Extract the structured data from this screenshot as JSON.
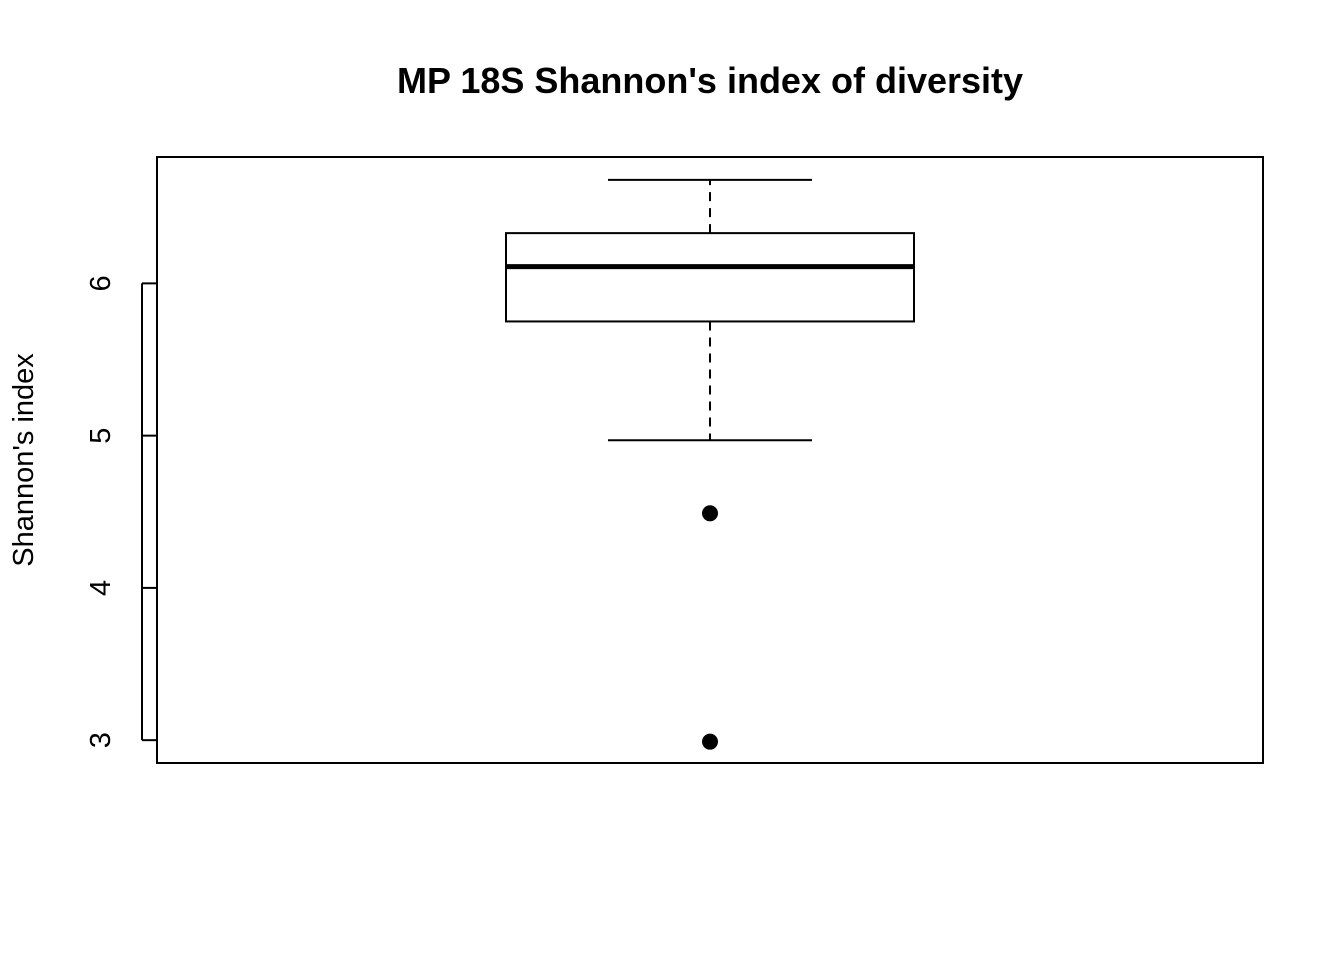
{
  "chart_data": {
    "type": "boxplot",
    "title": "MP 18S Shannon's index of diversity",
    "xlabel": "",
    "ylabel": "Shannon's index",
    "ylim": [
      2.85,
      6.83
    ],
    "y_ticks": [
      3,
      4,
      5,
      6
    ],
    "y_tick_labels": [
      "3",
      "4",
      "5",
      "6"
    ],
    "grid": false,
    "legend": "none",
    "series": [
      {
        "whisker_low": 4.97,
        "q1": 5.75,
        "median": 6.11,
        "q3": 6.33,
        "whisker_high": 6.68,
        "outliers": [
          4.49,
          2.99
        ]
      }
    ],
    "colors": {
      "line": "#000000",
      "background": "#ffffff",
      "box_fill": "#ffffff"
    }
  }
}
